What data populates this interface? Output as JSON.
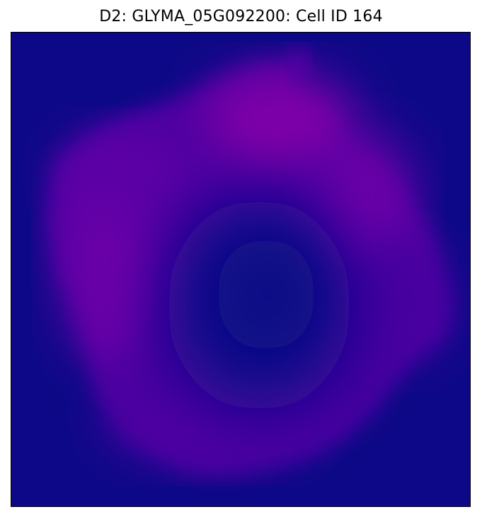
{
  "figure": {
    "title": "D2: GLYMA_05G092200: Cell ID 164"
  },
  "image": {
    "colors": {
      "background": "#0d0887",
      "cell_dim": "#3b049a",
      "cell_mid": "#5c01a6",
      "cell_bright": "#7e03a8"
    }
  }
}
